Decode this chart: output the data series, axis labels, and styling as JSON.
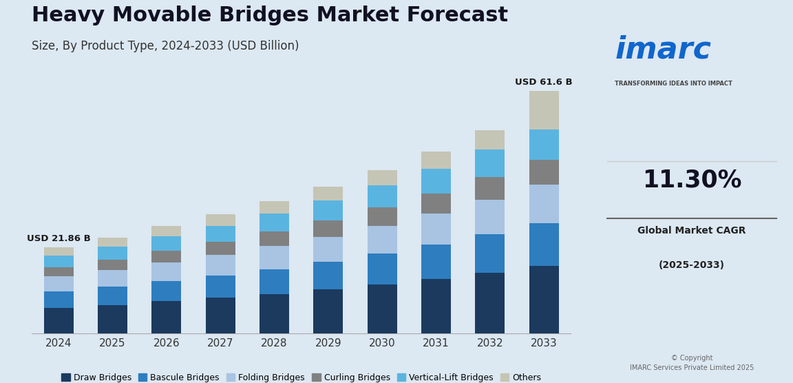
{
  "title": "Heavy Movable Bridges Market Forecast",
  "subtitle": "Size, By Product Type, 2024-2033 (USD Billion)",
  "years": [
    2024,
    2025,
    2026,
    2027,
    2028,
    2029,
    2030,
    2031,
    2032,
    2033
  ],
  "categories": [
    "Draw Bridges",
    "Bascule Bridges",
    "Folding Bridges",
    "Curling Bridges",
    "Vertical-Lift Bridges",
    "Others"
  ],
  "colors": [
    "#1b3a5e",
    "#2e7dbf",
    "#a8c4e2",
    "#808080",
    "#5ab4e0",
    "#c5c5b5"
  ],
  "data": {
    "Draw Bridges": [
      6.5,
      7.2,
      8.1,
      9.0,
      10.0,
      11.1,
      12.4,
      13.8,
      15.4,
      17.1
    ],
    "Bascule Bridges": [
      4.1,
      4.6,
      5.1,
      5.7,
      6.3,
      7.0,
      7.8,
      8.7,
      9.7,
      10.8
    ],
    "Folding Bridges": [
      3.8,
      4.2,
      4.7,
      5.2,
      5.8,
      6.4,
      7.1,
      7.9,
      8.8,
      9.8
    ],
    "Curling Bridges": [
      2.4,
      2.7,
      3.0,
      3.3,
      3.7,
      4.1,
      4.6,
      5.1,
      5.7,
      6.3
    ],
    "Vertical-Lift Bridges": [
      2.96,
      3.3,
      3.7,
      4.1,
      4.6,
      5.1,
      5.6,
      6.3,
      7.0,
      7.8
    ],
    "Others": [
      2.1,
      2.3,
      2.6,
      2.9,
      3.2,
      3.6,
      4.0,
      4.4,
      4.9,
      9.8
    ]
  },
  "first_bar_label": "USD 21.86 B",
  "last_bar_label": "USD 61.6 B",
  "background_color": "#dce8f2",
  "bar_width": 0.55,
  "ylim": [
    0,
    72
  ],
  "title_fontsize": 22,
  "subtitle_fontsize": 12,
  "legend_fontsize": 9,
  "tick_fontsize": 11,
  "label_fontsize": 10
}
